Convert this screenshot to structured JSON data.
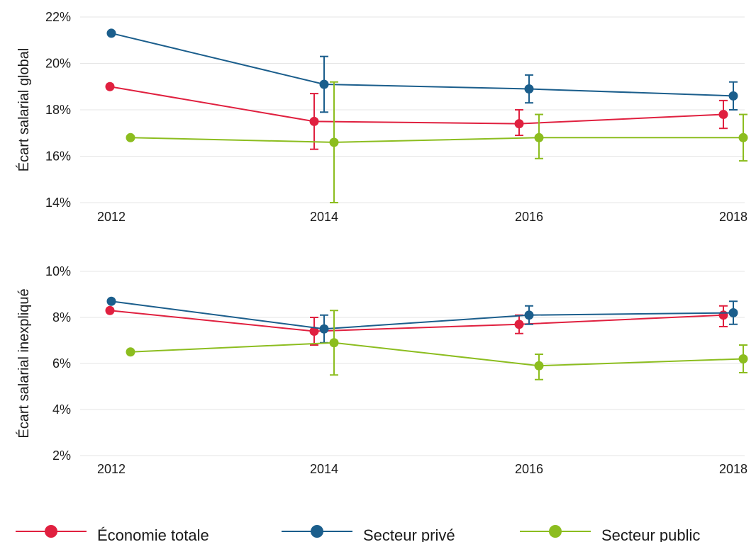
{
  "colors": {
    "economie": "#e0203f",
    "prive": "#1b5e8c",
    "public": "#8cbd1f",
    "grid": "#e6e6e6",
    "text": "#1a1a1a"
  },
  "legend": {
    "position": "bottom",
    "items": [
      {
        "label": "Économie totale",
        "color": "#e0203f"
      },
      {
        "label": "Secteur privé",
        "color": "#1b5e8c"
      },
      {
        "label": "Secteur public",
        "color": "#8cbd1f"
      }
    ]
  },
  "chart_data": [
    {
      "type": "line",
      "ylabel": "Écart salarial global",
      "x": [
        2012,
        2014,
        2016,
        2018
      ],
      "xtick_labels": [
        "2012",
        "2014",
        "2016",
        "2018"
      ],
      "ylim": [
        14,
        22
      ],
      "ytick_values": [
        14,
        16,
        18,
        20,
        22
      ],
      "ytick_labels": [
        "14%",
        "16%",
        "18%",
        "20%",
        "22%"
      ],
      "grid": true,
      "series": [
        {
          "name": "Économie totale",
          "color": "#e0203f",
          "values": [
            19.0,
            17.5,
            17.4,
            17.8
          ],
          "error_low": [
            null,
            16.3,
            16.9,
            17.2
          ],
          "error_high": [
            null,
            18.7,
            18.0,
            18.4
          ]
        },
        {
          "name": "Secteur privé",
          "color": "#1b5e8c",
          "values": [
            21.3,
            19.1,
            18.9,
            18.6
          ],
          "error_low": [
            null,
            17.9,
            18.3,
            18.0
          ],
          "error_high": [
            null,
            20.3,
            19.5,
            19.2
          ]
        },
        {
          "name": "Secteur public",
          "color": "#8cbd1f",
          "values": [
            16.8,
            16.6,
            16.8,
            16.8
          ],
          "error_low": [
            null,
            14.0,
            15.9,
            15.8
          ],
          "error_high": [
            null,
            19.2,
            17.8,
            17.8
          ]
        }
      ]
    },
    {
      "type": "line",
      "ylabel": "Écart salarial inexpliqué",
      "x": [
        2012,
        2014,
        2016,
        2018
      ],
      "xtick_labels": [
        "2012",
        "2014",
        "2016",
        "2018"
      ],
      "ylim": [
        2,
        10
      ],
      "ytick_values": [
        2,
        4,
        6,
        8,
        10
      ],
      "ytick_labels": [
        "2%",
        "4%",
        "6%",
        "8%",
        "10%"
      ],
      "grid": true,
      "series": [
        {
          "name": "Économie totale",
          "color": "#e0203f",
          "values": [
            8.3,
            7.4,
            7.7,
            8.1
          ],
          "error_low": [
            null,
            6.8,
            7.3,
            7.6
          ],
          "error_high": [
            null,
            8.0,
            8.1,
            8.5
          ]
        },
        {
          "name": "Secteur privé",
          "color": "#1b5e8c",
          "values": [
            8.7,
            7.5,
            8.1,
            8.2
          ],
          "error_low": [
            null,
            6.9,
            7.7,
            7.7
          ],
          "error_high": [
            null,
            8.1,
            8.5,
            8.7
          ]
        },
        {
          "name": "Secteur public",
          "color": "#8cbd1f",
          "values": [
            6.5,
            6.9,
            5.9,
            6.2
          ],
          "error_low": [
            null,
            5.5,
            5.3,
            5.6
          ],
          "error_high": [
            null,
            8.3,
            6.4,
            6.8
          ]
        }
      ]
    }
  ]
}
